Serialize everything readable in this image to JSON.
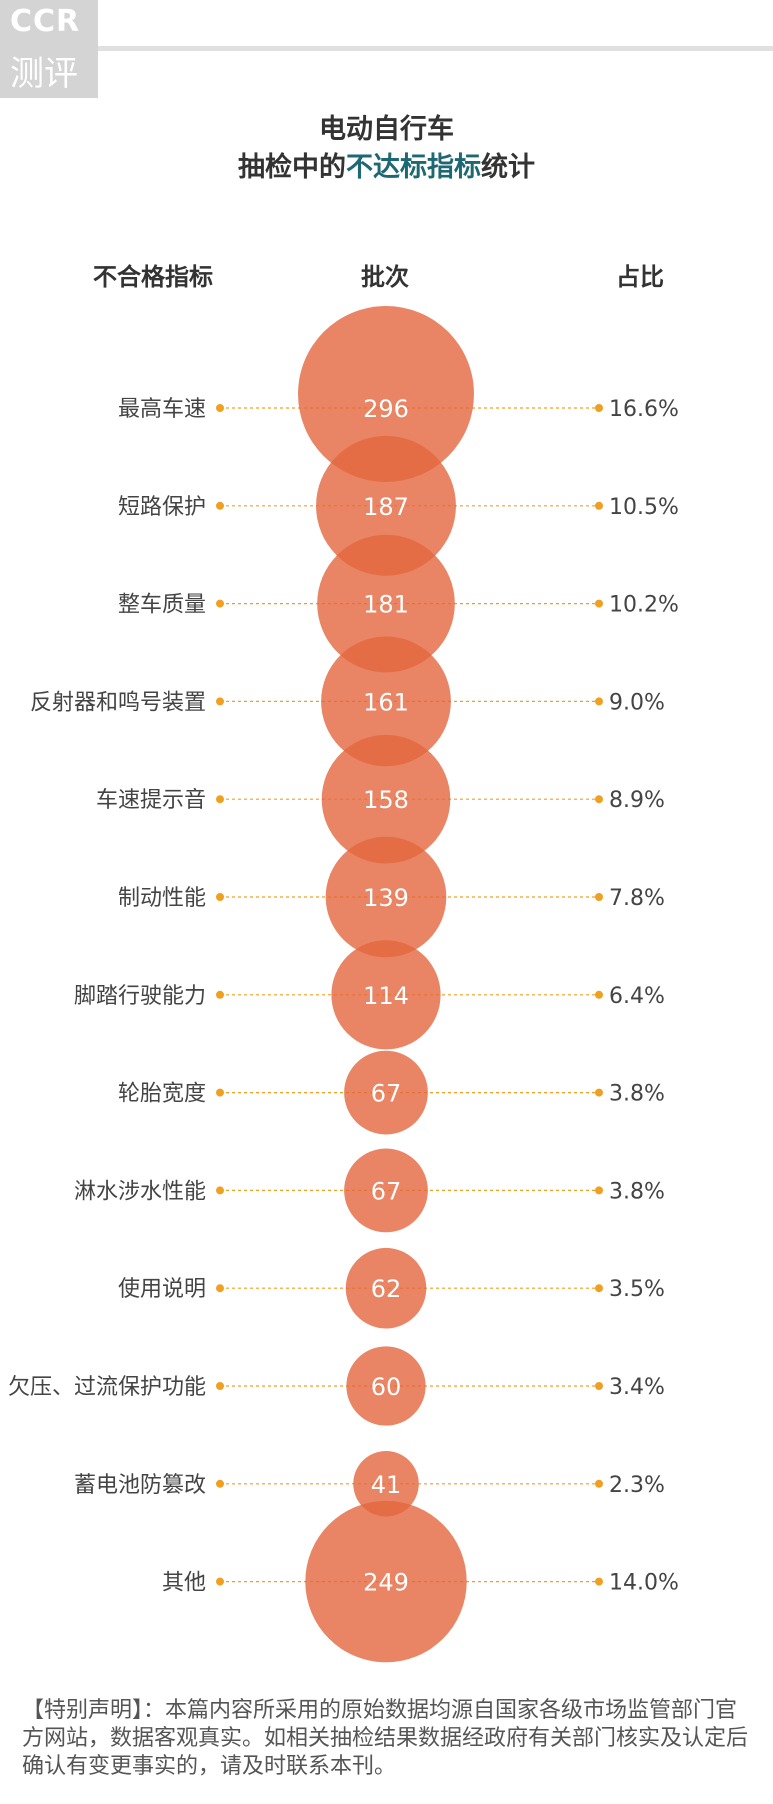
{
  "logo": {
    "line1": "CCR",
    "line2": "测评"
  },
  "title": {
    "line1": "电动自行车",
    "line2_prefix": "抽检中的",
    "line2_highlight": "不达标指标",
    "line2_suffix": "统计"
  },
  "headers": {
    "item": "不合格指标",
    "count": "批次",
    "share": "占比"
  },
  "colors": {
    "bubble": "#e4663d",
    "dots": "#f0a020",
    "highlight": "#1e6874"
  },
  "chart_data": {
    "type": "bubble",
    "categories": [
      "最高车速",
      "短路保护",
      "整车质量",
      "反射器和鸣号装置",
      "车速提示音",
      "制动性能",
      "脚踏行驶能力",
      "轮胎宽度",
      "淋水涉水性能",
      "使用说明",
      "欠压、过流保护功能",
      "蓄电池防篡改",
      "其他"
    ],
    "values": [
      296,
      187,
      181,
      161,
      158,
      139,
      114,
      67,
      67,
      62,
      60,
      41,
      249
    ],
    "labels": [
      "296",
      "187",
      "181",
      "161",
      "158",
      "139",
      "114",
      "67",
      "67",
      "62",
      "60",
      "41",
      "249"
    ],
    "shares": [
      "16.6%",
      "10.5%",
      "10.2%",
      "9.0%",
      "8.9%",
      "7.8%",
      "6.4%",
      "3.8%",
      "3.8%",
      "3.5%",
      "3.4%",
      "2.3%",
      "14.0%"
    ]
  },
  "note": "【特别声明】：本篇内容所采用的原始数据均源自国家各级市场监管部门官方网站，数据客观真实。如相关抽检结果数据经政府有关部门核实及认定后确认有变更事实的，请及时联系本刊。"
}
